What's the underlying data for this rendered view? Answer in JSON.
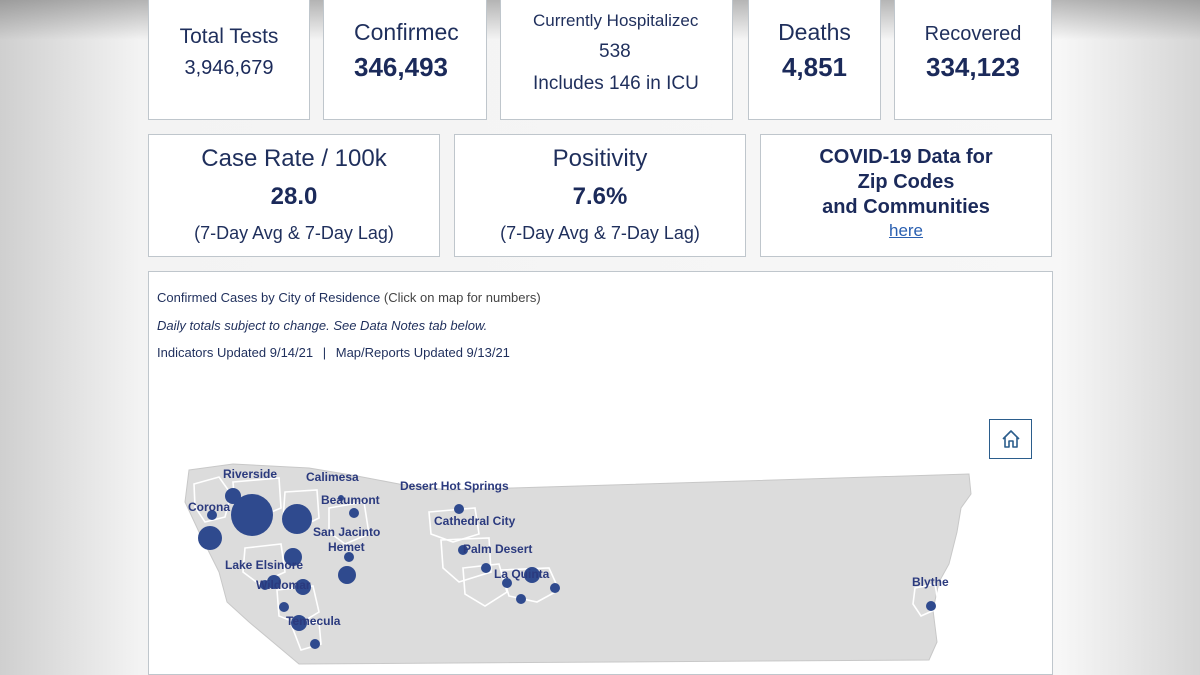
{
  "indicators": {
    "total_tests": {
      "label": "Total Tests",
      "value": "3,946,679"
    },
    "confirmed": {
      "label": "Confirmec",
      "value": "346,493"
    },
    "hospitalized": {
      "label": "Currently Hospitalizec",
      "value": "538",
      "sub": "Includes 146 in ICU"
    },
    "deaths": {
      "label": "Deaths",
      "value": "4,851"
    },
    "recovered": {
      "label": "Recovered",
      "value": "334,123"
    },
    "case_rate": {
      "label": "Case Rate / 100k",
      "value": "28.0",
      "note": "(7-Day Avg & 7-Day Lag)"
    },
    "positivity": {
      "label": "Positivity",
      "value": "7.6%",
      "note": "(7-Day Avg & 7-Day Lag)"
    },
    "zip_link": {
      "line1": "COVID-19 Data for",
      "line2": "Zip Codes",
      "line3": "and Communities",
      "link": "here"
    }
  },
  "map_panel": {
    "title": "Confirmed Cases by City of Residence",
    "title_hint": "(Click on map for numbers)",
    "subtitle": "Daily totals subject to change. See Data Notes tab below.",
    "updated_indicators": "Indicators Updated 9/14/21",
    "separator": "|",
    "updated_map": "Map/Reports Updated 9/13/21",
    "home_button_icon": "home-icon",
    "cities": {
      "riverside": "Riverside",
      "calimesa": "Calimesa",
      "desert_hot_springs": "Desert Hot Springs",
      "beaumont": "Beaumont",
      "corona": "Corona",
      "san_jacinto": "San Jacinto",
      "cathedral_city": "Cathedral City",
      "hemet": "Hemet",
      "palm_desert": "Palm Desert",
      "lake_elsinore": "Lake Elsinore",
      "la_quinta": "La Quinta",
      "wildomar": "Wildomar",
      "temecula": "Temecula",
      "blythe": "Blythe"
    }
  },
  "colors": {
    "accent": "#1b2a5a",
    "bubble": "#2f4a8e",
    "land": "#dcdcdc",
    "link": "#2a5fb0"
  }
}
